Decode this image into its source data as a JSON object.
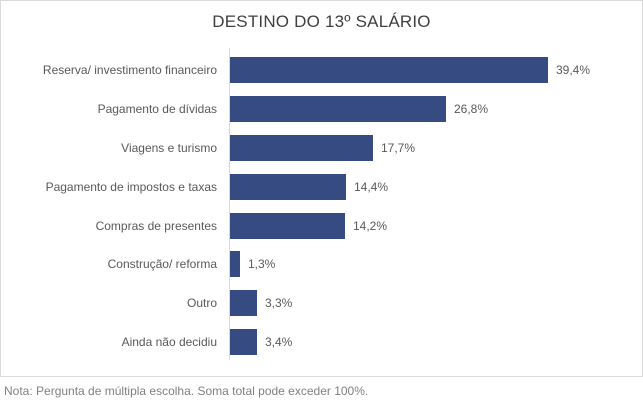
{
  "chart": {
    "title": "DESTINO DO 13º SALÁRIO",
    "note": "Nota: Pergunta de múltipla escolha. Soma total pode exceder 100%.",
    "bar_color": "#354b81",
    "rows": [
      {
        "label": "Reserva/ investimento financeiro",
        "value": 39.4,
        "value_label": "39,4%"
      },
      {
        "label": "Pagamento de dívidas",
        "value": 26.8,
        "value_label": "26,8%"
      },
      {
        "label": "Viagens e turismo",
        "value": 17.7,
        "value_label": "17,7%"
      },
      {
        "label": "Pagamento de impostos e taxas",
        "value": 14.4,
        "value_label": "14,4%"
      },
      {
        "label": "Compras de presentes",
        "value": 14.2,
        "value_label": "14,2%"
      },
      {
        "label": "Construção/ reforma",
        "value": 1.3,
        "value_label": "1,3%"
      },
      {
        "label": "Outro",
        "value": 3.3,
        "value_label": "3,3%"
      },
      {
        "label": "Ainda não decidiu",
        "value": 3.4,
        "value_label": "3,4%"
      }
    ]
  },
  "chart_data": {
    "type": "bar",
    "orientation": "horizontal",
    "title": "DESTINO DO 13º SALÁRIO",
    "categories": [
      "Reserva/ investimento financeiro",
      "Pagamento de dívidas",
      "Viagens e turismo",
      "Pagamento de impostos e taxas",
      "Compras de presentes",
      "Construção/ reforma",
      "Outro",
      "Ainda não decidiu"
    ],
    "values": [
      39.4,
      26.8,
      17.7,
      14.4,
      14.2,
      1.3,
      3.3,
      3.4
    ],
    "data_labels": [
      "39,4%",
      "26,8%",
      "17,7%",
      "14,4%",
      "14,2%",
      "1,3%",
      "3,3%",
      "3,4%"
    ],
    "unit": "%",
    "xlabel": "",
    "ylabel": "",
    "grid": false,
    "legend": null,
    "annotations": [
      "Nota: Pergunta de múltipla escolha. Soma total pode exceder 100%."
    ]
  }
}
